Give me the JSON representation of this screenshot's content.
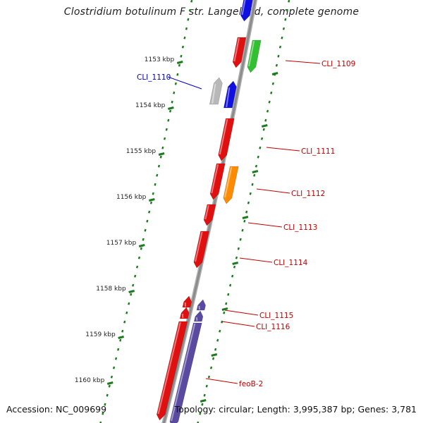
{
  "title": "Clostridium botulinum F str. Langeland, complete genome",
  "footer": {
    "accession": "Accession: NC_009699",
    "topology": "Topology: circular; Length: 3,995,387 bp; Genes: 3,781"
  },
  "colors": {
    "backbone": "#8c8c8c",
    "tick": "#1e7a1e",
    "red_gene": "#e01010",
    "green_gene": "#30c030",
    "blue_gene": "#1010e0",
    "grey_gene": "#b8b8b8",
    "orange_gene": "#ff8c00",
    "purple_gene": "#5a4aa0",
    "label_red": "#c00000",
    "label_blue": "#0000c0"
  },
  "scale_labels": [
    "1153 kbp",
    "1154 kbp",
    "1155 kbp",
    "1156 kbp",
    "1157 kbp",
    "1158 kbp",
    "1159 kbp",
    "1160 kbp"
  ],
  "gene_labels": [
    {
      "text": "CLI_1109",
      "color": "label_red"
    },
    {
      "text": "CLI_1110",
      "color": "label_blue"
    },
    {
      "text": "CLI_1111",
      "color": "label_red"
    },
    {
      "text": "CLI_1112",
      "color": "label_red"
    },
    {
      "text": "CLI_1113",
      "color": "label_red"
    },
    {
      "text": "CLI_1114",
      "color": "label_red"
    },
    {
      "text": "CLI_1115",
      "color": "label_red"
    },
    {
      "text": "CLI_1116",
      "color": "label_red"
    },
    {
      "text": "feoB-2",
      "color": "label_red"
    }
  ]
}
